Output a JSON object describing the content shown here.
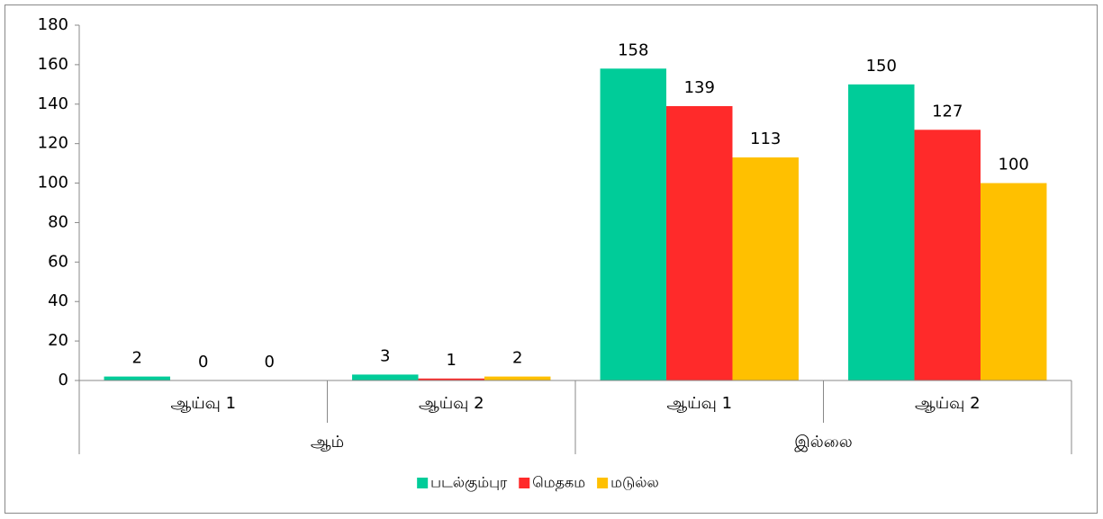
{
  "chart_data": {
    "type": "bar",
    "categories": [
      "ஆய்வு 1",
      "ஆய்வு 2",
      "ஆய்வு 1",
      "ஆய்வு 2"
    ],
    "category_groups": [
      {
        "label": "ஆம்",
        "count": 2
      },
      {
        "label": "இல்லை",
        "count": 2
      }
    ],
    "series": [
      {
        "name": "படல்கும்புர",
        "color": "#00cc99",
        "values": [
          2,
          3,
          158,
          150
        ]
      },
      {
        "name": "மெதகம",
        "color": "#ff2a2a",
        "values": [
          0,
          1,
          139,
          127
        ]
      },
      {
        "name": "மடுல்ல",
        "color": "#ffc000",
        "values": [
          0,
          2,
          113,
          100
        ]
      }
    ],
    "ylim": [
      0,
      180
    ],
    "yticks": [
      0,
      20,
      40,
      60,
      80,
      100,
      120,
      140,
      160,
      180
    ],
    "grid": false,
    "legend": "bottom"
  }
}
